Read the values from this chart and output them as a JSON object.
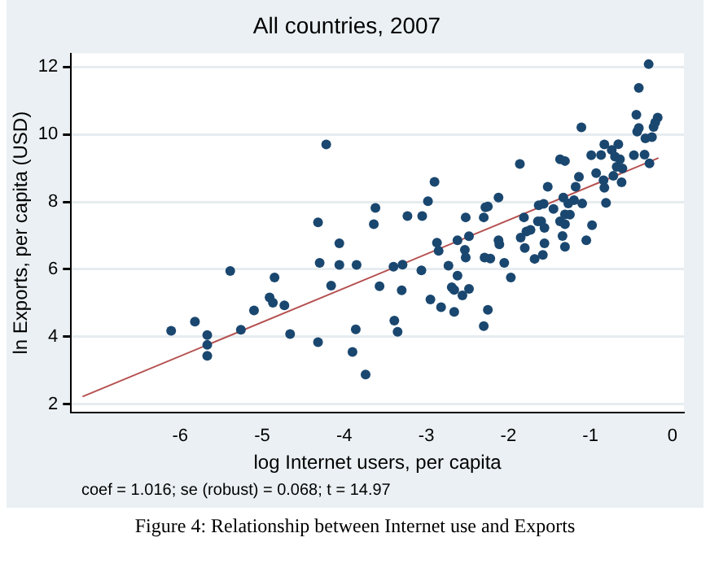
{
  "chart_data": {
    "type": "scatter",
    "title": "All countries, 2007",
    "xlabel": "log Internet users, per capita",
    "ylabel": "ln Exports, per capita (USD)",
    "annotations": [
      "coef = 1.016; se (robust) = 0.068; t = 14.97",
      "Figure 4: Relationship between Internet use and Exports"
    ],
    "xlim": [
      -7.33,
      0.14
    ],
    "ylim": [
      1.76,
      12.4
    ],
    "xticks": [
      -6,
      -5,
      -4,
      -3,
      -2,
      -1,
      0
    ],
    "yticks": [
      2,
      4,
      6,
      8,
      10,
      12
    ],
    "grid": "y",
    "legend": false,
    "series": [
      {
        "marker": "circle",
        "color": "#1a476f",
        "x": [
          -6.11,
          -5.82,
          -5.67,
          -5.67,
          -5.67,
          -5.39,
          -5.26,
          -5.1,
          -4.91,
          -4.87,
          -4.85,
          -4.73,
          -4.66,
          -4.32,
          -4.3,
          -4.32,
          -4.22,
          -4.16,
          -4.06,
          -4.06,
          -3.86,
          -3.85,
          -3.9,
          -3.74,
          -3.64,
          -3.62,
          -3.57,
          -3.4,
          -3.39,
          -3.35,
          -3.3,
          -3.29,
          -3.23,
          -3.06,
          -3.05,
          -2.98,
          -2.95,
          -2.9,
          -2.87,
          -2.85,
          -2.82,
          -2.73,
          -2.69,
          -2.66,
          -2.66,
          -2.62,
          -2.62,
          -2.56,
          -2.53,
          -2.52,
          -2.52,
          -2.48,
          -2.48,
          -2.3,
          -2.3,
          -2.28,
          -2.25,
          -2.29,
          -2.22,
          -2.25,
          -2.12,
          -2.12,
          -2.11,
          -2.05,
          -1.97,
          -1.86,
          -1.85,
          -1.81,
          -1.8,
          -1.78,
          -1.73,
          -1.68,
          -1.63,
          -1.64,
          -1.6,
          -1.58,
          -1.57,
          -1.56,
          -1.56,
          -1.52,
          -1.45,
          -1.37,
          -1.31,
          -1.37,
          -1.34,
          -1.33,
          -1.31,
          -1.31,
          -1.31,
          -1.27,
          -1.25,
          -1.2,
          -1.18,
          -1.14,
          -1.11,
          -1.1,
          -1.05,
          -0.98,
          -0.99,
          -0.93,
          -0.87,
          -0.83,
          -0.84,
          -0.83,
          -0.81,
          -0.74,
          -0.72,
          -0.7,
          -0.66,
          -0.68,
          -0.64,
          -0.61,
          -0.62,
          -0.47,
          -0.44,
          -0.43,
          -0.41,
          -0.41,
          -0.34,
          -0.33,
          -0.29,
          -0.28,
          -0.25,
          -0.23,
          -0.21,
          -0.18
        ],
        "values": [
          4.18,
          4.45,
          4.05,
          3.76,
          3.44,
          5.95,
          4.21,
          4.78,
          5.17,
          5.01,
          5.76,
          4.93,
          4.08,
          7.39,
          6.19,
          3.84,
          9.7,
          5.52,
          6.77,
          6.13,
          4.22,
          6.13,
          3.55,
          2.88,
          7.34,
          7.82,
          5.5,
          6.08,
          4.48,
          4.15,
          5.38,
          6.14,
          7.58,
          5.97,
          7.58,
          8.02,
          5.11,
          8.59,
          6.79,
          6.55,
          4.88,
          6.11,
          5.47,
          4.74,
          5.39,
          5.81,
          6.86,
          5.23,
          6.58,
          6.35,
          7.54,
          6.98,
          5.42,
          4.32,
          7.54,
          7.84,
          7.86,
          6.35,
          6.32,
          4.8,
          8.13,
          6.86,
          6.74,
          6.19,
          5.76,
          9.12,
          6.94,
          7.54,
          6.63,
          7.12,
          7.17,
          6.31,
          7.9,
          7.42,
          7.42,
          6.43,
          7.94,
          7.23,
          6.77,
          8.45,
          7.79,
          9.26,
          9.21,
          7.42,
          6.99,
          8.13,
          7.63,
          7.34,
          6.67,
          7.95,
          7.62,
          8.05,
          8.45,
          8.74,
          10.21,
          7.95,
          6.86,
          7.31,
          9.38,
          8.85,
          9.39,
          9.7,
          8.64,
          8.42,
          7.97,
          9.54,
          8.77,
          9.34,
          9.71,
          9.04,
          9.26,
          8.99,
          8.58,
          9.38,
          10.58,
          10.08,
          10.19,
          11.38,
          9.4,
          9.88,
          12.08,
          9.14,
          9.92,
          10.22,
          10.35,
          10.5
        ]
      },
      {
        "type": "line",
        "marker": "none",
        "color": "#b5504f",
        "x": [
          -7.19,
          -0.17
        ],
        "values": [
          2.23,
          9.3
        ]
      }
    ]
  }
}
